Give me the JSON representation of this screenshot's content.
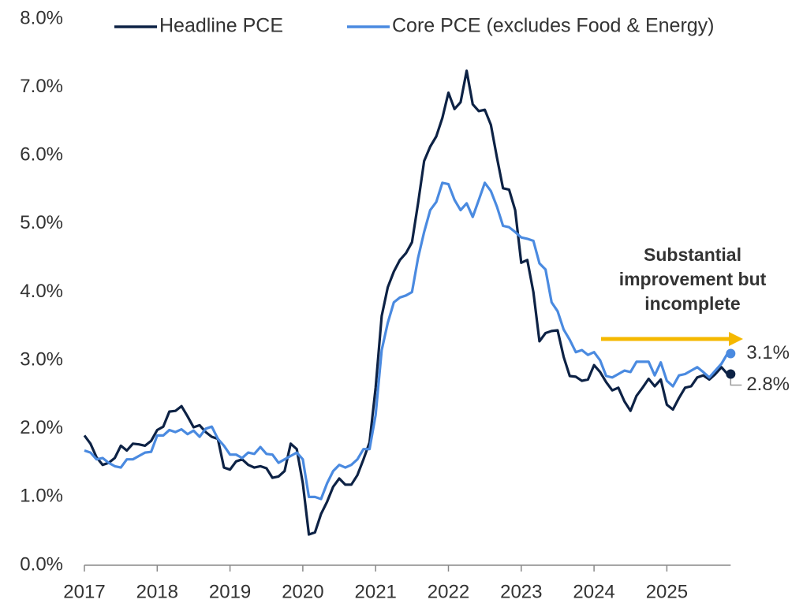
{
  "chart_data": {
    "type": "line",
    "categories": [
      "2017",
      null,
      null,
      null,
      null,
      null,
      null,
      null,
      null,
      null,
      null,
      null,
      "2018",
      null,
      null,
      null,
      null,
      null,
      null,
      null,
      null,
      null,
      null,
      null,
      "2019",
      null,
      null,
      null,
      null,
      null,
      null,
      null,
      null,
      null,
      null,
      null,
      "2020",
      null,
      null,
      null,
      null,
      null,
      null,
      null,
      null,
      null,
      null,
      null,
      "2021",
      null,
      null,
      null,
      null,
      null,
      null,
      null,
      null,
      null,
      null,
      null,
      "2022",
      null,
      null,
      null,
      null,
      null,
      null,
      null,
      null,
      null,
      null,
      null,
      "2023",
      null,
      null,
      null,
      null,
      null,
      null,
      null,
      null,
      null,
      null,
      null,
      "2024",
      null,
      null,
      null,
      null,
      null,
      null,
      null,
      null,
      null,
      null,
      null,
      "2025",
      null,
      null,
      null,
      null,
      null,
      null,
      null,
      null,
      null,
      null
    ],
    "series": [
      {
        "name": "Headline PCE",
        "color": "#0d2245",
        "values": [
          1.9,
          1.78,
          1.58,
          1.47,
          1.5,
          1.57,
          1.75,
          1.68,
          1.78,
          1.77,
          1.75,
          1.82,
          1.98,
          2.03,
          2.25,
          2.26,
          2.33,
          2.18,
          2.02,
          2.05,
          1.95,
          1.88,
          1.85,
          1.43,
          1.4,
          1.52,
          1.55,
          1.47,
          1.43,
          1.45,
          1.42,
          1.28,
          1.3,
          1.38,
          1.78,
          1.7,
          1.2,
          0.45,
          0.48,
          0.75,
          0.93,
          1.15,
          1.27,
          1.18,
          1.18,
          1.32,
          1.55,
          1.8,
          2.6,
          3.65,
          4.07,
          4.3,
          4.47,
          4.57,
          4.73,
          5.3,
          5.92,
          6.13,
          6.28,
          6.55,
          6.92,
          6.68,
          6.78,
          7.24,
          6.75,
          6.65,
          6.67,
          6.45,
          5.97,
          5.52,
          5.5,
          5.2,
          4.43,
          4.47,
          4.0,
          3.28,
          3.4,
          3.43,
          3.44,
          3.05,
          2.77,
          2.76,
          2.7,
          2.72,
          2.93,
          2.83,
          2.68,
          2.56,
          2.6,
          2.4,
          2.26,
          2.48,
          2.6,
          2.73,
          2.62,
          2.72,
          2.35,
          2.28,
          2.45,
          2.6,
          2.62,
          2.75,
          2.78,
          2.72,
          2.8,
          2.9,
          2.8
        ],
        "value_labels": [
          null,
          null,
          null,
          null,
          null,
          null,
          null,
          null,
          null,
          null,
          null,
          null,
          null,
          null,
          null,
          null,
          null,
          null,
          null,
          null,
          null,
          null,
          null,
          null,
          null,
          null,
          null,
          null,
          null,
          null,
          null,
          null,
          null,
          null,
          null,
          null,
          null,
          null,
          null,
          null,
          null,
          null,
          null,
          null,
          null,
          null,
          null,
          null,
          null,
          null,
          null,
          null,
          null,
          null,
          null,
          null,
          null,
          null,
          null,
          null,
          null,
          null,
          null,
          null,
          null,
          null,
          null,
          null,
          null,
          null,
          null,
          null,
          null,
          null,
          null,
          null,
          null,
          null,
          null,
          null,
          null,
          null,
          null,
          null,
          null,
          null,
          null,
          null,
          null,
          null,
          null,
          null,
          null,
          null,
          null,
          null,
          null,
          null,
          null,
          null,
          null,
          null,
          null,
          null,
          null,
          null,
          "2.8%"
        ]
      },
      {
        "name": "Core PCE (excludes Food & Energy)",
        "color": "#4a8ae0",
        "values": [
          1.68,
          1.65,
          1.55,
          1.57,
          1.5,
          1.45,
          1.43,
          1.55,
          1.55,
          1.6,
          1.65,
          1.66,
          1.9,
          1.9,
          1.98,
          1.95,
          1.99,
          1.92,
          1.97,
          1.88,
          2.0,
          2.03,
          1.85,
          1.75,
          1.62,
          1.62,
          1.57,
          1.65,
          1.63,
          1.73,
          1.63,
          1.62,
          1.5,
          1.55,
          1.6,
          1.65,
          1.55,
          1.0,
          1.0,
          0.97,
          1.2,
          1.38,
          1.47,
          1.43,
          1.47,
          1.55,
          1.7,
          1.7,
          2.2,
          3.15,
          3.55,
          3.85,
          3.92,
          3.95,
          4.0,
          4.5,
          4.88,
          5.2,
          5.32,
          5.6,
          5.58,
          5.35,
          5.2,
          5.3,
          5.1,
          5.35,
          5.6,
          5.48,
          5.25,
          4.97,
          4.95,
          4.88,
          4.8,
          4.78,
          4.75,
          4.42,
          4.33,
          3.85,
          3.72,
          3.45,
          3.3,
          3.12,
          3.15,
          3.08,
          3.12,
          3.0,
          2.77,
          2.75,
          2.8,
          2.85,
          2.83,
          2.98,
          2.98,
          2.98,
          2.78,
          2.97,
          2.7,
          2.62,
          2.78,
          2.8,
          2.85,
          2.9,
          2.83,
          2.75,
          2.85,
          2.95,
          3.1
        ],
        "value_labels": [
          null,
          null,
          null,
          null,
          null,
          null,
          null,
          null,
          null,
          null,
          null,
          null,
          null,
          null,
          null,
          null,
          null,
          null,
          null,
          null,
          null,
          null,
          null,
          null,
          null,
          null,
          null,
          null,
          null,
          null,
          null,
          null,
          null,
          null,
          null,
          null,
          null,
          null,
          null,
          null,
          null,
          null,
          null,
          null,
          null,
          null,
          null,
          null,
          null,
          null,
          null,
          null,
          null,
          null,
          null,
          null,
          null,
          null,
          null,
          null,
          null,
          null,
          null,
          null,
          null,
          null,
          null,
          null,
          null,
          null,
          null,
          null,
          null,
          null,
          null,
          null,
          null,
          null,
          null,
          null,
          null,
          null,
          null,
          null,
          null,
          null,
          null,
          null,
          null,
          null,
          null,
          null,
          null,
          null,
          null,
          null,
          null,
          null,
          null,
          null,
          null,
          null,
          null,
          null,
          null,
          null,
          "3.1%"
        ]
      }
    ],
    "ylim": [
      0,
      8
    ],
    "yticks": [
      {
        "value": 0,
        "label": "0.0%"
      },
      {
        "value": 1,
        "label": "1.0%"
      },
      {
        "value": 2,
        "label": "2.0%"
      },
      {
        "value": 3,
        "label": "3.0%"
      },
      {
        "value": 4,
        "label": "4.0%"
      },
      {
        "value": 5,
        "label": "5.0%"
      },
      {
        "value": 6,
        "label": "6.0%"
      },
      {
        "value": 7,
        "label": "7.0%"
      },
      {
        "value": 8,
        "label": "8.0%"
      }
    ],
    "annotation": [
      "Substantial",
      "improvement but",
      "incomplete"
    ],
    "annotation_color": "#f5b800",
    "grid": false
  }
}
